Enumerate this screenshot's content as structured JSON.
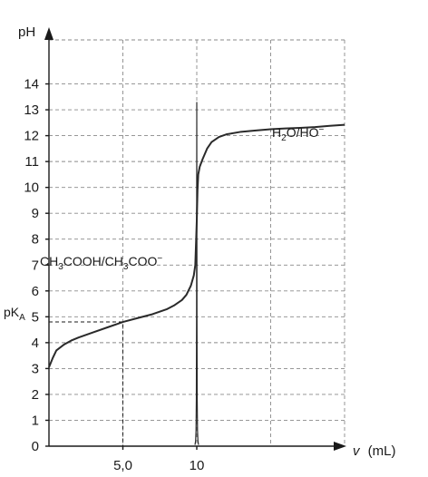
{
  "chart_data": {
    "type": "line",
    "xlabel_symbol": "v",
    "xlabel_unit": "(mL)",
    "ylabel": "pH",
    "xlim": [
      0,
      20
    ],
    "ylim": [
      0,
      15
    ],
    "x_tick_labels": [
      {
        "x": 5,
        "label": "5,0"
      },
      {
        "x": 10,
        "label": "10"
      }
    ],
    "x_gridlines": [
      5,
      10,
      15,
      20
    ],
    "y_ticks": [
      0,
      1,
      2,
      3,
      4,
      5,
      6,
      7,
      8,
      9,
      10,
      11,
      12,
      13,
      14
    ],
    "grid": true,
    "series": [
      {
        "x": [
          0,
          0.25,
          0.5,
          1,
          1.5,
          2,
          3,
          4,
          5,
          6,
          7,
          8,
          8.5,
          9,
          9.3,
          9.6,
          9.8,
          9.9,
          10,
          10.05,
          10.1,
          10.2,
          10.4,
          10.7,
          11,
          11.5,
          12,
          13,
          14,
          15,
          16,
          17,
          18,
          19,
          20
        ],
        "y": [
          3.05,
          3.4,
          3.7,
          3.92,
          4.08,
          4.2,
          4.4,
          4.6,
          4.8,
          4.95,
          5.1,
          5.3,
          5.45,
          5.65,
          5.85,
          6.2,
          6.6,
          7.0,
          8.7,
          9.9,
          10.5,
          10.8,
          11.1,
          11.5,
          11.75,
          11.95,
          12.05,
          12.15,
          12.2,
          12.25,
          12.28,
          12.3,
          12.33,
          12.38,
          12.42
        ]
      },
      {
        "x": [
          9.88,
          9.92,
          9.95,
          9.97,
          9.985,
          10.0,
          10.015,
          10.03,
          10.05,
          10.08,
          10.12
        ],
        "y": [
          0.05,
          0.2,
          0.6,
          1.8,
          5.0,
          13.3,
          5.0,
          1.8,
          0.6,
          0.2,
          0.05
        ]
      }
    ],
    "annotations": {
      "pka_label": "pK",
      "pka_sub": "A",
      "pka_value": 4.8,
      "pka_x": 5,
      "acid_pair_a": "CH",
      "acid_pair_b": "3",
      "acid_pair_c": "COOH/CH",
      "acid_pair_d": "3",
      "acid_pair_e": "COO",
      "acid_pair_f": "−",
      "water_pair_a": "H",
      "water_pair_b": "2",
      "water_pair_c": "O/HO",
      "water_pair_d": "−"
    }
  }
}
